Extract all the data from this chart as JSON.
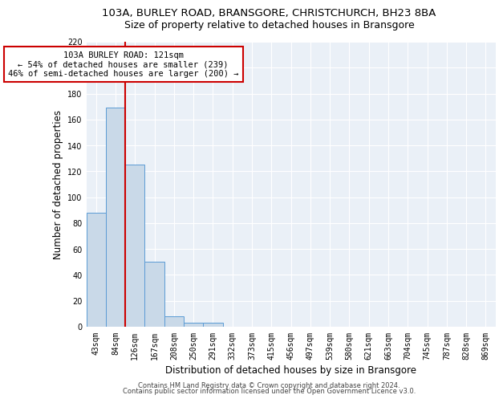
{
  "title1": "103A, BURLEY ROAD, BRANSGORE, CHRISTCHURCH, BH23 8BA",
  "title2": "Size of property relative to detached houses in Bransgore",
  "xlabel": "Distribution of detached houses by size in Bransgore",
  "ylabel": "Number of detached properties",
  "bin_labels": [
    "43sqm",
    "84sqm",
    "126sqm",
    "167sqm",
    "208sqm",
    "250sqm",
    "291sqm",
    "332sqm",
    "373sqm",
    "415sqm",
    "456sqm",
    "497sqm",
    "539sqm",
    "580sqm",
    "621sqm",
    "663sqm",
    "704sqm",
    "745sqm",
    "787sqm",
    "828sqm",
    "869sqm"
  ],
  "bar_values": [
    88,
    169,
    125,
    50,
    8,
    3,
    3,
    0,
    0,
    0,
    0,
    0,
    0,
    0,
    0,
    0,
    0,
    0,
    0,
    0,
    0
  ],
  "bar_color": "#c9d9e8",
  "bar_edge_color": "#5b9bd5",
  "vline_pos": 1.5,
  "annotation_line1": "103A BURLEY ROAD: 121sqm",
  "annotation_line2": "← 54% of detached houses are smaller (239)",
  "annotation_line3": "46% of semi-detached houses are larger (200) →",
  "annotation_box_color": "#ffffff",
  "annotation_box_edge": "#cc0000",
  "vline_color": "#cc0000",
  "ylim": [
    0,
    220
  ],
  "yticks": [
    0,
    20,
    40,
    60,
    80,
    100,
    120,
    140,
    160,
    180,
    200,
    220
  ],
  "footer1": "Contains HM Land Registry data © Crown copyright and database right 2024.",
  "footer2": "Contains public sector information licensed under the Open Government Licence v3.0.",
  "bg_color": "#eaf0f7",
  "title1_fontsize": 9.5,
  "title2_fontsize": 9,
  "tick_fontsize": 7,
  "ylabel_fontsize": 8.5,
  "xlabel_fontsize": 8.5,
  "annotation_fontsize": 7.5,
  "footer_fontsize": 6
}
